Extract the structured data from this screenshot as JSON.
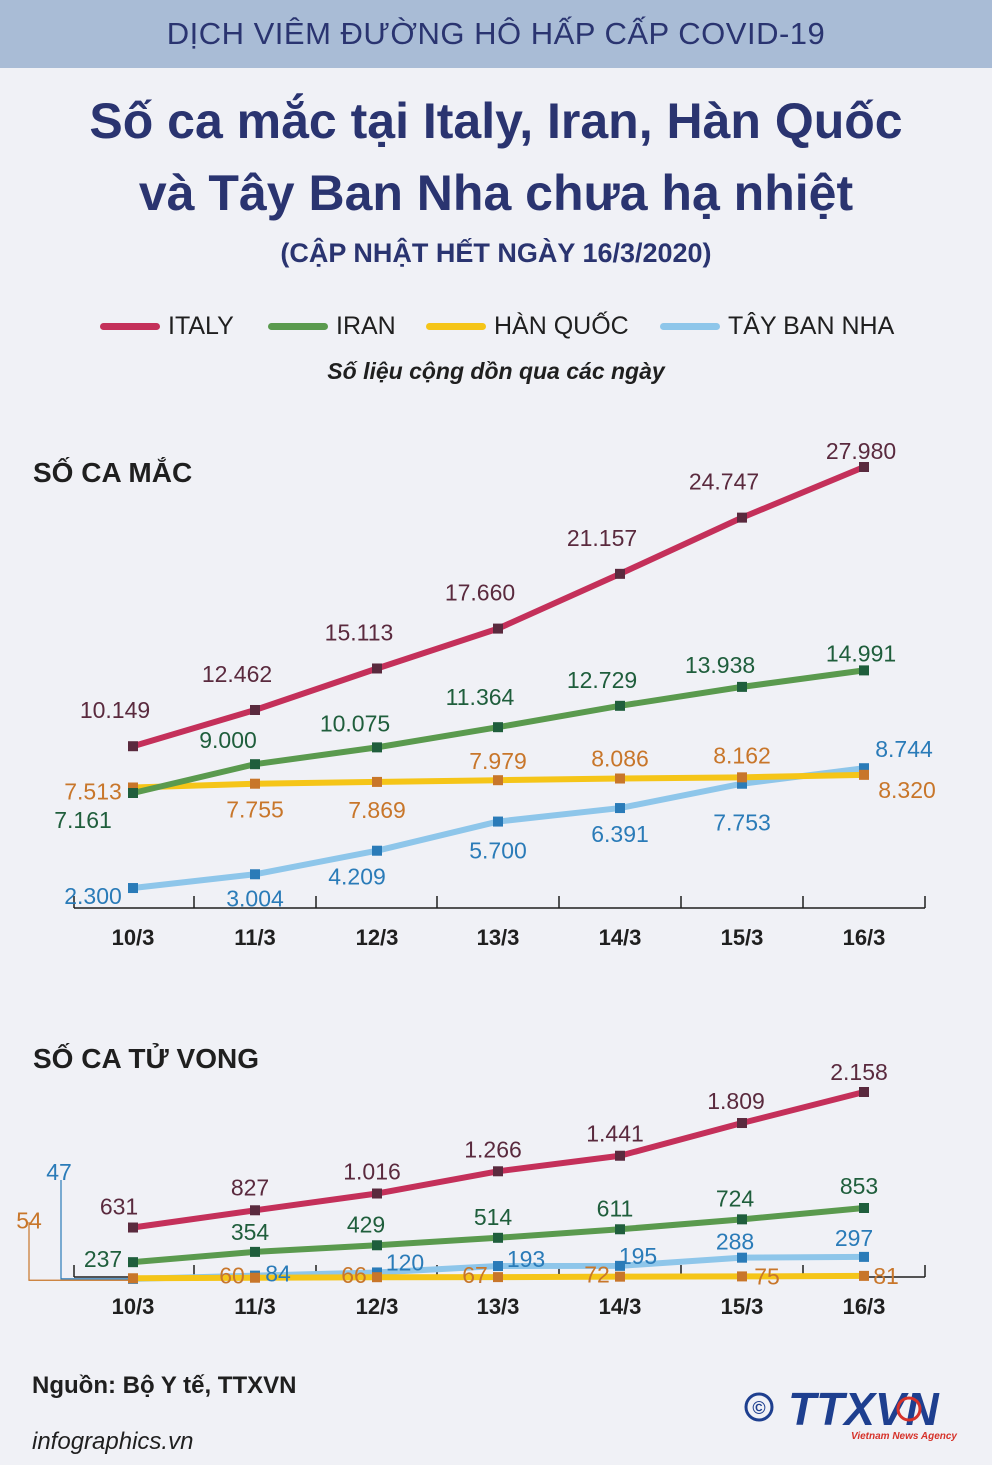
{
  "header": {
    "banner": "DỊCH VIÊM ĐƯỜNG HÔ HẤP CẤP COVID-19",
    "title_line1": "Số ca mắc tại Italy, Iran, Hàn Quốc",
    "title_line2": "và Tây Ban Nha chưa hạ nhiệt",
    "subtitle": "(CẬP NHẬT HẾT NGÀY 16/3/2020)",
    "note": "Số liệu cộng dồn qua các ngày"
  },
  "legend": [
    {
      "label": "ITALY",
      "color": "#c4305a"
    },
    {
      "label": "IRAN",
      "color": "#5a9a4e"
    },
    {
      "label": "HÀN QUỐC",
      "color": "#f5c518"
    },
    {
      "label": "TÂY BAN NHA",
      "color": "#8ec6ea"
    }
  ],
  "chart_data": [
    {
      "type": "line",
      "title": "SỐ CA MẮC",
      "categories": [
        "10/3",
        "11/3",
        "12/3",
        "13/3",
        "14/3",
        "15/3",
        "16/3"
      ],
      "series": [
        {
          "name": "ITALY",
          "line_color": "#c4305a",
          "label_color": "#5a2a3e",
          "marker_color": "#5a2a3e",
          "values": [
            10149,
            12462,
            15113,
            17660,
            21157,
            24747,
            27980
          ],
          "labels": [
            "10.149",
            "12.462",
            "15.113",
            "17.660",
            "21.157",
            "24.747",
            "27.980"
          ]
        },
        {
          "name": "IRAN",
          "line_color": "#5a9a4e",
          "label_color": "#1f5e3c",
          "marker_color": "#1f5e3c",
          "values": [
            7161,
            9000,
            10075,
            11364,
            12729,
            13938,
            14991
          ],
          "labels": [
            "7.161",
            "9.000",
            "10.075",
            "11.364",
            "12.729",
            "13.938",
            "14.991"
          ]
        },
        {
          "name": "HÀN QUỐC",
          "line_color": "#f5c518",
          "label_color": "#c8762a",
          "marker_color": "#c8762a",
          "values": [
            7513,
            7755,
            7869,
            7979,
            8086,
            8162,
            8320
          ],
          "labels": [
            "7.513",
            "7.755",
            "7.869",
            "7.979",
            "8.086",
            "8.162",
            "8.320"
          ]
        },
        {
          "name": "TÂY BAN NHA",
          "line_color": "#8ec6ea",
          "label_color": "#2a7bb8",
          "marker_color": "#2a7bb8",
          "values": [
            2300,
            3004,
            4209,
            5700,
            6391,
            7753,
            8744
          ],
          "labels": [
            "2.300",
            "3.004",
            "4.209",
            "5.700",
            "6.391",
            "7.753",
            "8.744"
          ]
        }
      ]
    },
    {
      "type": "line",
      "title": "SỐ CA TỬ VONG",
      "categories": [
        "10/3",
        "11/3",
        "12/3",
        "13/3",
        "14/3",
        "15/3",
        "16/3"
      ],
      "series": [
        {
          "name": "ITALY",
          "line_color": "#c4305a",
          "label_color": "#5a2a3e",
          "marker_color": "#5a2a3e",
          "values": [
            631,
            827,
            1016,
            1266,
            1441,
            1809,
            2158
          ],
          "labels": [
            "631",
            "827",
            "1.016",
            "1.266",
            "1.441",
            "1.809",
            "2.158"
          ]
        },
        {
          "name": "IRAN",
          "line_color": "#5a9a4e",
          "label_color": "#1f5e3c",
          "marker_color": "#1f5e3c",
          "values": [
            237,
            354,
            429,
            514,
            611,
            724,
            853
          ],
          "labels": [
            "237",
            "354",
            "429",
            "514",
            "611",
            "724",
            "853"
          ]
        },
        {
          "name": "HÀN QUỐC",
          "line_color": "#f5c518",
          "label_color": "#c8762a",
          "marker_color": "#c8762a",
          "values": [
            54,
            60,
            66,
            67,
            72,
            75,
            81
          ],
          "labels": [
            "54",
            "60",
            "66",
            "67",
            "72",
            "75",
            "81"
          ]
        },
        {
          "name": "TÂY BAN NHA",
          "line_color": "#8ec6ea",
          "label_color": "#2a7bb8",
          "marker_color": "#2a7bb8",
          "values": [
            47,
            84,
            120,
            193,
            195,
            288,
            297
          ],
          "labels": [
            "47",
            "84",
            "120",
            "193",
            "195",
            "288",
            "297"
          ]
        }
      ]
    }
  ],
  "footer": {
    "source": "Nguồn: Bộ Y tế, TTXVN",
    "website": "infographics.vn",
    "logo_text": "TTXVN",
    "logo_subtext": "Vietnam News Agency",
    "copyright": "©"
  }
}
